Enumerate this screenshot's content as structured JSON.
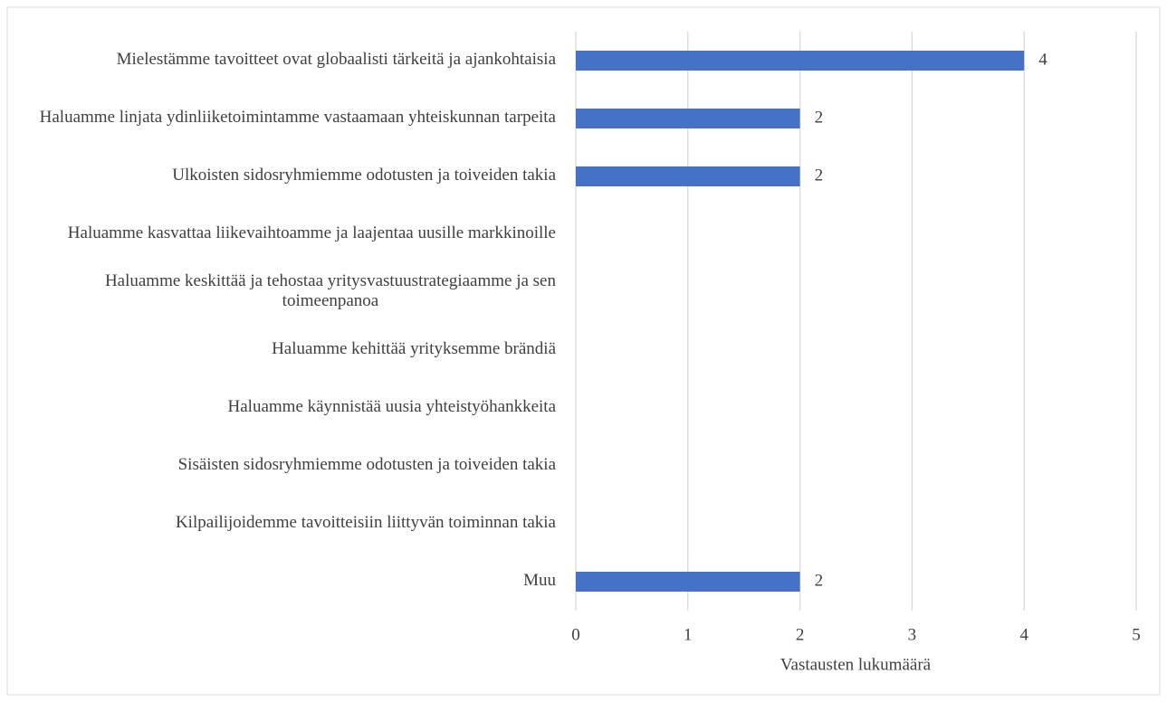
{
  "chart_data": {
    "type": "bar",
    "orientation": "horizontal",
    "x_label": "Vastausten lukumäärä",
    "categories": [
      "Mielestämme tavoitteet ovat globaalisti tärkeitä ja ajankohtaisia",
      "Haluamme linjata ydinliiketoimintamme vastaamaan yhteiskunnan tarpeita",
      "Ulkoisten sidosryhmiemme odotusten ja toiveiden takia",
      "Haluamme kasvattaa liikevaihtoamme ja laajentaa uusille markkinoille",
      "Haluamme keskittää ja tehostaa yritysvastuustrategiaamme ja sen toimeenpanoa",
      "Haluamme kehittää yrityksemme brändiä",
      "Haluamme käynnistää uusia yhteistyöhankkeita",
      "Sisäisten sidosryhmiemme odotusten ja toiveiden takia",
      "Kilpailijoidemme tavoitteisiin liittyvän toiminnan takia",
      "Muu"
    ],
    "values": [
      4,
      2,
      2,
      0,
      0,
      0,
      0,
      0,
      0,
      2
    ],
    "color": "#4472c4",
    "xlim": [
      0,
      5
    ],
    "xticks": [
      0,
      1,
      2,
      3,
      4,
      5
    ],
    "grid": true
  }
}
